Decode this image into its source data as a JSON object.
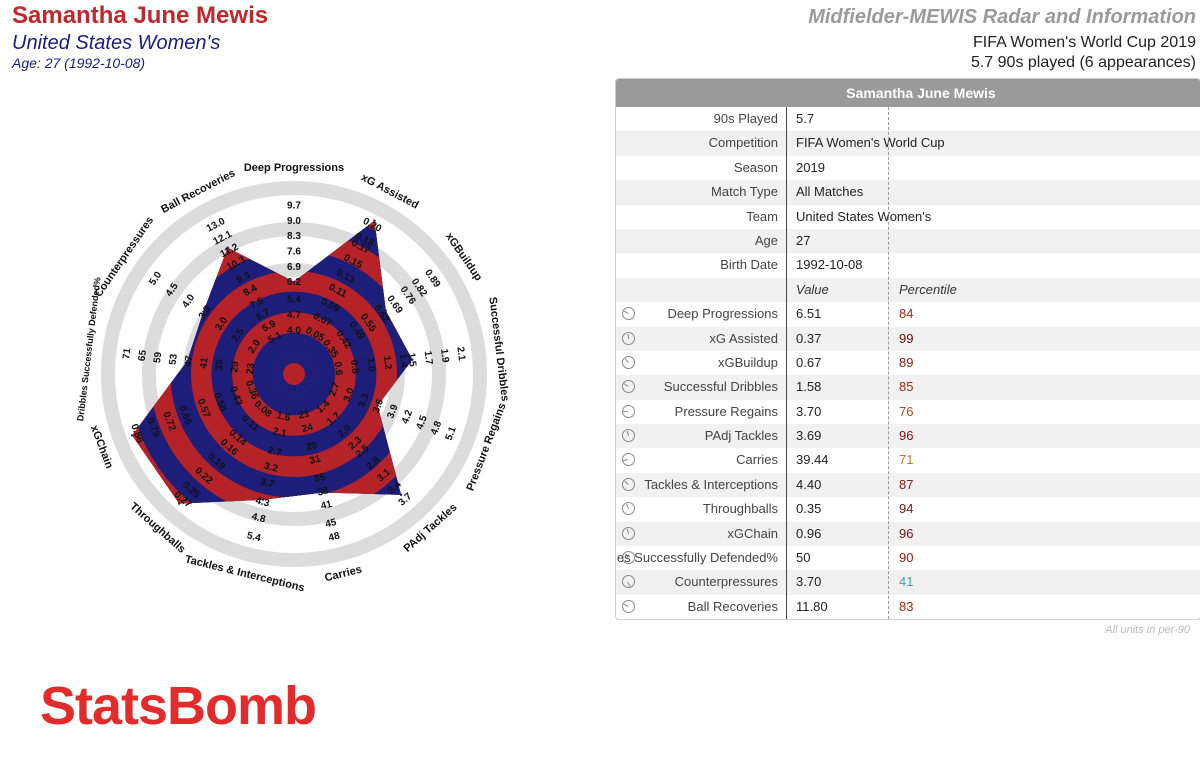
{
  "header": {
    "player_name": "Samantha June Mewis",
    "team": "United States Women's",
    "age_line": "Age: 27 (1992-10-08)",
    "title": "Midfielder-MEWIS Radar and Information",
    "competition_line": "FIFA Women's World Cup 2019",
    "minutes_line": "5.7 90s played (6 appearances)"
  },
  "info_table": {
    "title": "Samantha June Mewis",
    "info_rows": [
      {
        "label": "90s Played",
        "value": "5.7"
      },
      {
        "label": "Competition",
        "value": "FIFA Women's World Cup"
      },
      {
        "label": "Season",
        "value": "2019"
      },
      {
        "label": "Match Type",
        "value": "All Matches"
      },
      {
        "label": "Team",
        "value": "United States Women's"
      },
      {
        "label": "Age",
        "value": "27"
      },
      {
        "label": "Birth Date",
        "value": "1992-10-08"
      }
    ],
    "value_header": "Value",
    "percentile_header": "Percentile",
    "stat_rows": [
      {
        "label": "Deep Progressions",
        "value": "6.51",
        "percentile": "84",
        "color": "#9c2a14"
      },
      {
        "label": "xG Assisted",
        "value": "0.37",
        "percentile": "99",
        "color": "#6e0a0a"
      },
      {
        "label": "xGBuildup",
        "value": "0.67",
        "percentile": "89",
        "color": "#8a1d10"
      },
      {
        "label": "Successful Dribbles",
        "value": "1.58",
        "percentile": "85",
        "color": "#9c2a14"
      },
      {
        "label": "Pressure Regains",
        "value": "3.70",
        "percentile": "76",
        "color": "#b8481e"
      },
      {
        "label": "PAdj Tackles",
        "value": "3.69",
        "percentile": "96",
        "color": "#7a1010"
      },
      {
        "label": "Carries",
        "value": "39.44",
        "percentile": "71",
        "color": "#c8781e"
      },
      {
        "label": "Tackles & Interceptions",
        "value": "4.40",
        "percentile": "87",
        "color": "#8a1d10"
      },
      {
        "label": "Throughballs",
        "value": "0.35",
        "percentile": "94",
        "color": "#7a1010"
      },
      {
        "label": "xGChain",
        "value": "0.96",
        "percentile": "96",
        "color": "#7a1010"
      },
      {
        "label": "Dribbles Successfully Defended%",
        "value": "50",
        "percentile": "90",
        "color": "#8a1d10"
      },
      {
        "label": "Counterpressures",
        "value": "3.70",
        "percentile": "41",
        "color": "#3aa3b0"
      },
      {
        "label": "Ball Recoveries",
        "value": "11.80",
        "percentile": "83",
        "color": "#9c2a14"
      }
    ],
    "units_note": "All units in per-90"
  },
  "logo_text": "StatsBomb",
  "colors": {
    "band_red": "#b52228",
    "band_blue": "#1d1d7a",
    "ring": "#dcdcdc",
    "name_red": "#c0282d",
    "team_blue": "#1a1a8c"
  },
  "chart_data": {
    "type": "radar",
    "axes": [
      {
        "name": "Deep Progressions",
        "ticks": [
          "4.0",
          "4.7",
          "5.4",
          "6.2",
          "6.9",
          "7.6",
          "8.3",
          "9.0",
          "9.7"
        ],
        "min": 3.3,
        "max": 9.7,
        "value": 6.51
      },
      {
        "name": "xG Assisted",
        "ticks": [
          "0.05",
          "0.07",
          "0.09",
          "0.11",
          "0.13",
          "0.15",
          "0.17",
          "0.18",
          "0.20"
        ],
        "min": 0.03,
        "max": 0.2,
        "value": 0.37
      },
      {
        "name": "xGBuildup",
        "ticks": [
          "0.35",
          "0.42",
          "0.49",
          "0.55",
          "0.62",
          "0.69",
          "0.76",
          "0.82",
          "0.89"
        ],
        "min": 0.28,
        "max": 0.89,
        "value": 0.67
      },
      {
        "name": "Successful Dribbles",
        "ticks": [
          "0.6",
          "0.8",
          "1.0",
          "1.2",
          "1.4",
          "1.5",
          "1.7",
          "1.9",
          "2.1"
        ],
        "min": 0.4,
        "max": 2.1,
        "value": 1.58
      },
      {
        "name": "Pressure Regains",
        "ticks": [
          "2.7",
          "3.0",
          "3.3",
          "3.6",
          "3.9",
          "4.2",
          "4.5",
          "4.8",
          "5.1"
        ],
        "min": 2.4,
        "max": 5.1,
        "value": 3.7
      },
      {
        "name": "PAdj Tackles",
        "ticks": [
          "1.4",
          "1.7",
          "2.0",
          "2.3",
          "2.5",
          "2.8",
          "3.1",
          "3.4",
          "3.7"
        ],
        "min": 1.1,
        "max": 3.7,
        "value": 3.69
      },
      {
        "name": "Carries",
        "ticks": [
          "21",
          "24",
          "28",
          "31",
          "35",
          "38",
          "41",
          "45",
          "48"
        ],
        "min": 18,
        "max": 48,
        "value": 39.44
      },
      {
        "name": "Tackles & Interceptions",
        "ticks": [
          "1.6",
          "2.1",
          "2.7",
          "3.2",
          "3.7",
          "4.3",
          "4.8",
          "5.4"
        ],
        "min": 1.1,
        "max": 5.4,
        "value": 4.4
      },
      {
        "name": "Throughballs",
        "ticks": [
          "0.08",
          "0.11",
          "0.14",
          "0.16",
          "0.19",
          "0.22",
          "0.25",
          "0.27"
        ],
        "min": 0.05,
        "max": 0.27,
        "value": 0.35
      },
      {
        "name": "xGChain",
        "ticks": [
          "0.36",
          "0.43",
          "0.50",
          "0.57",
          "0.65",
          "0.72",
          "0.79",
          "0.86"
        ],
        "min": 0.29,
        "max": 0.86,
        "value": 0.96
      },
      {
        "name": "Dribbles Successfully Defended%",
        "ticks": [
          "23",
          "29",
          "35",
          "41",
          "47",
          "53",
          "59",
          "65",
          "71"
        ],
        "min": 17,
        "max": 71,
        "value": 50
      },
      {
        "name": "Counterpressures",
        "ticks": [
          "2.0",
          "2.5",
          "3.0",
          "3.5",
          "4.0",
          "4.5",
          "5.0"
        ],
        "min": 1.5,
        "max": 5.0,
        "value": 3.7
      },
      {
        "name": "Ball Recoveries",
        "ticks": [
          "5.1",
          "5.9",
          "6.7",
          "7.5",
          "8.4",
          "9.3",
          "10.3",
          "11.2",
          "12.1",
          "13.0"
        ],
        "min": 4.3,
        "max": 13.0,
        "value": 11.8
      }
    ]
  }
}
